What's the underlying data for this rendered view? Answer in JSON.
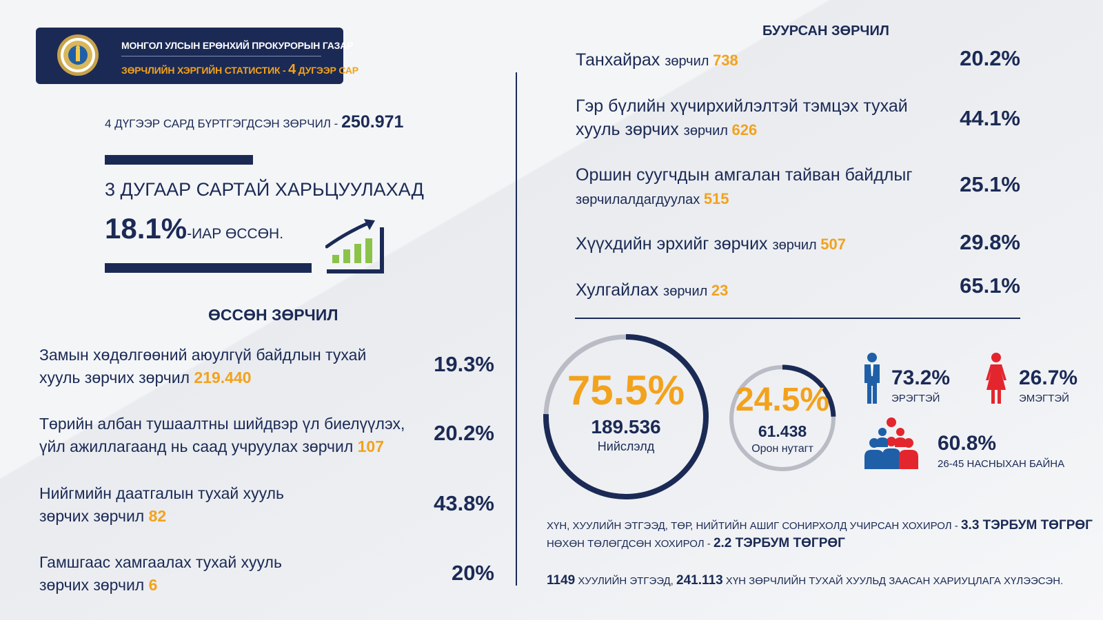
{
  "header": {
    "title": "МОНГОЛ УЛСЫН ЕРӨНХИЙ ПРОКУРОРЫН ГАЗАР",
    "subtitle_prefix": "ЗӨРЧЛИЙН ХЭРГИЙН СТАТИСТИК - ",
    "subtitle_month": "4",
    "subtitle_suffix": " ДУГЭЭР САР"
  },
  "registered": {
    "label": "4 ДҮГЭЭР САРД БҮРТГЭГДСЭН ЗӨРЧИЛ - ",
    "value": "250.971"
  },
  "comparison": {
    "line1": "3 ДУГААР САРТАЙ ХАРЬЦУУЛАХАД",
    "percent": "18.1%",
    "suffix": "-ИАР ӨССӨН."
  },
  "increased": {
    "title": "ӨССӨН ЗӨРЧИЛ",
    "items": [
      {
        "line1": "Замын хөдөлгөөний аюулгүй байдлын тухай",
        "line2": "хууль зөрчих зөрчил ",
        "count": "219.440",
        "percent": "19.3%"
      },
      {
        "line1": "Төрийн албан тушаалтны шийдвэр үл биелүүлэх,",
        "line2": "үйл ажиллагаанд нь саад учруулах зөрчил ",
        "count": "107",
        "percent": "20.2%"
      },
      {
        "line1": "Нийгмийн даатгалын тухай хууль",
        "line2": "зөрчих зөрчил ",
        "count": "82",
        "percent": "43.8%"
      },
      {
        "line1": "Гамшгаас хамгаалах тухай хууль",
        "line2": "зөрчих зөрчил ",
        "count": "6",
        "percent": "20%"
      }
    ]
  },
  "decreased": {
    "title": "БУУРСАН ЗӨРЧИЛ",
    "items": [
      {
        "line1": "Танхайрах ",
        "small1": "зөрчил ",
        "count": "738",
        "percent": "20.2%"
      },
      {
        "line1": "Гэр бүлийн хүчирхийлэлтэй тэмцэх тухай",
        "line2": "хууль зөрчих ",
        "small2": "зөрчил ",
        "count": "626",
        "percent": "44.1%"
      },
      {
        "line1": "Оршин суугчдын амгалан тайван байдлыг",
        "small2": "зөрчилалдагдуулах ",
        "count": "515",
        "percent": "25.1%"
      },
      {
        "line1": "Хүүхдийн эрхийг зөрчих ",
        "small1": "зөрчил ",
        "count": "507",
        "percent": "29.8%"
      },
      {
        "line1": "Хулгайлах ",
        "small1": "зөрчил ",
        "count": "23",
        "percent": "65.1%"
      }
    ]
  },
  "location": {
    "capital": {
      "percent": "75.5%",
      "value": "189.536",
      "label": "Нийслэлд",
      "fraction": 0.755
    },
    "rural": {
      "percent": "24.5%",
      "value": "61.438",
      "label": "Орон нутагт",
      "fraction": 0.245
    }
  },
  "gender": {
    "male": {
      "percent": "73.2%",
      "label": "ЭРЭГТЭЙ"
    },
    "female": {
      "percent": "26.7%",
      "label": "ЭМЭГТЭЙ"
    }
  },
  "age": {
    "percent": "60.8%",
    "label": "26-45 НАСНЫХАН БАЙНА"
  },
  "damage": {
    "line1_label": "ХҮН, ХУУЛИЙН ЭТГЭЭД, ТӨР, НИЙТИЙН АШИГ СОНИРХОЛД УЧИРСАН ХОХИРОЛ - ",
    "line1_value": "3.3  ТЭРБУМ ТӨГРӨГ",
    "line2_label": "НӨХӨН ТӨЛӨГДСӨН ХОХИРОЛ - ",
    "line2_value": "2.2 ТЭРБУМ ТӨГРӨГ"
  },
  "liability": {
    "entities": "1149",
    "entities_label": " ХУУЛИЙН ЭТГЭЭД, ",
    "persons": "241.113",
    "persons_label": " ХҮН ЗӨРЧЛИЙН ТУХАЙ ХУУЛЬД ЗААСАН ХАРИУЦЛАГА ХҮЛЭЭСЭН."
  },
  "colors": {
    "navy": "#1b2a55",
    "orange": "#f2a21c",
    "green": "#8bc34a",
    "red": "#e3262d",
    "blue": "#1f5fa8"
  }
}
